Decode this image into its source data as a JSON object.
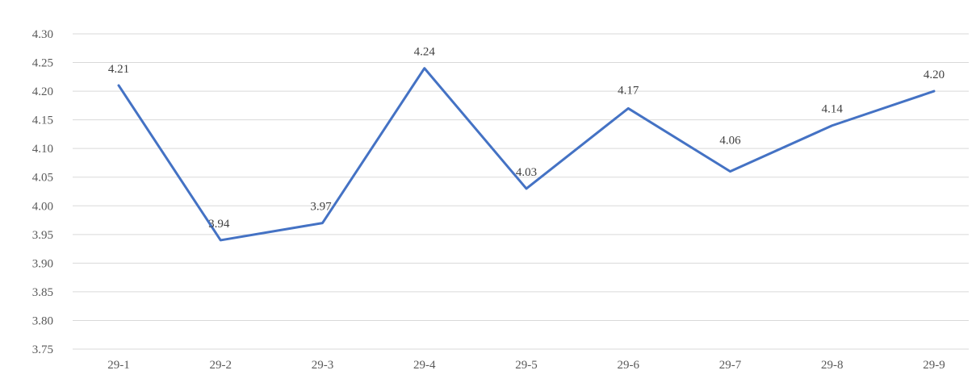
{
  "chart_data": {
    "type": "line",
    "title": "",
    "xlabel": "",
    "ylabel": "",
    "categories": [
      "29-1",
      "29-2",
      "29-3",
      "29-4",
      "29-5",
      "29-6",
      "29-7",
      "29-8",
      "29-9"
    ],
    "series": [
      {
        "values": [
          4.21,
          3.94,
          3.97,
          4.24,
          4.03,
          4.17,
          4.06,
          4.14,
          4.2
        ],
        "data_labels": [
          "4.21",
          "3.94",
          "3.97",
          "4.24",
          "4.03",
          "4.17",
          "4.06",
          "4.14",
          "4.20"
        ],
        "color": "#4472c4"
      }
    ],
    "ylim": [
      3.75,
      4.3
    ],
    "yticks": [
      "4.30",
      "4.25",
      "4.20",
      "4.15",
      "4.10",
      "4.05",
      "4.00",
      "3.95",
      "3.90",
      "3.85",
      "3.80",
      "3.75"
    ],
    "grid": true,
    "legend": "none"
  }
}
